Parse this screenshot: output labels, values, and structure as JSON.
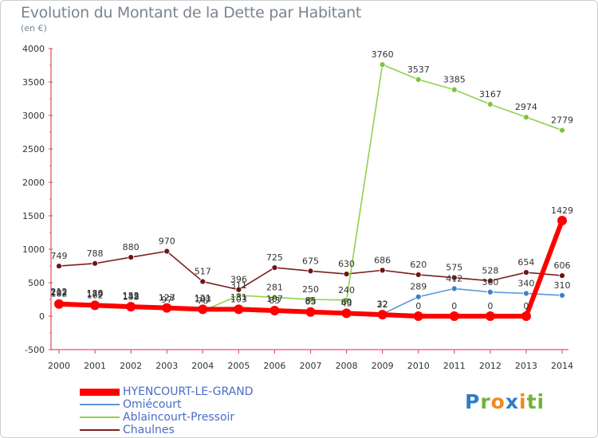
{
  "header": {
    "title": "Evolution du Montant de la Dette par Habitant",
    "subtitle": "(en €)"
  },
  "brand": {
    "text": "Proxiti",
    "letters": [
      {
        "ch": "P",
        "color": "#2e7dc7"
      },
      {
        "ch": "r",
        "color": "#6fb33a"
      },
      {
        "ch": "o",
        "color": "#f08a1c"
      },
      {
        "ch": "x",
        "color": "#2e7dc7"
      },
      {
        "ch": "i",
        "color": "#f08a1c"
      },
      {
        "ch": "t",
        "color": "#6fb33a"
      },
      {
        "ch": "i",
        "color": "#6fb33a"
      }
    ]
  },
  "chart_data": {
    "type": "line",
    "title": "Evolution du Montant de la Dette par Habitant",
    "subtitle": "(en €)",
    "x": [
      "2000",
      "2001",
      "2002",
      "2003",
      "2004",
      "2005",
      "2006",
      "2007",
      "2008",
      "2009",
      "2010",
      "2011",
      "2012",
      "2013",
      "2014"
    ],
    "ylim": [
      -500,
      4000
    ],
    "yticks": [
      -500,
      0,
      500,
      1000,
      1500,
      2000,
      2500,
      3000,
      3500,
      4000
    ],
    "grid": false,
    "legend_position": "bottom-left",
    "series": [
      {
        "name": "HYENCOURT-LE-GRAND",
        "color": "#ff0000",
        "point_color": "#ff0000",
        "values": [
          182,
          162,
          142,
          123,
          103,
          103,
          83,
          63,
          43,
          22,
          0,
          0,
          0,
          0,
          1429
        ],
        "labels": [
          "182",
          "162",
          "142",
          "123",
          "103",
          "103",
          "83",
          "63",
          "43",
          "22",
          "0",
          "0",
          "0",
          "0",
          "1429"
        ]
      },
      {
        "name": "Omiécourt",
        "color": "#5a96d2",
        "point_color": "#3f80c8",
        "values": [
          202,
          188,
          153,
          127,
          121,
          131,
          107,
          85,
          60,
          32,
          289,
          412,
          360,
          340,
          310
        ],
        "labels": [
          "202",
          "188",
          "153",
          "127",
          "121",
          "131",
          "107",
          "85",
          "60",
          "32",
          "289",
          "412",
          "360",
          "340",
          "310"
        ]
      },
      {
        "name": "Ablaincourt-Pressoir",
        "color": "#8fd14f",
        "point_color": "#7cc43c",
        "values": [
          212,
          179,
          138,
          97,
          76,
          311,
          281,
          250,
          240,
          3760,
          3537,
          3385,
          3167,
          2974,
          2779
        ],
        "labels": [
          "212",
          "179",
          "138",
          "97",
          "76",
          "311",
          "281",
          "250",
          "240",
          "3760",
          "3537",
          "3385",
          "3167",
          "2974",
          "2779"
        ]
      },
      {
        "name": "Chaulnes",
        "color": "#7a1f1f",
        "point_color": "#6d1414",
        "values": [
          749,
          788,
          880,
          970,
          517,
          396,
          725,
          675,
          630,
          686,
          620,
          575,
          528,
          654,
          606
        ],
        "labels": [
          "749",
          "788",
          "880",
          "970",
          "517",
          "396",
          "725",
          "675",
          "630",
          "686",
          "620",
          "575",
          "528",
          "654",
          "606"
        ]
      }
    ]
  }
}
